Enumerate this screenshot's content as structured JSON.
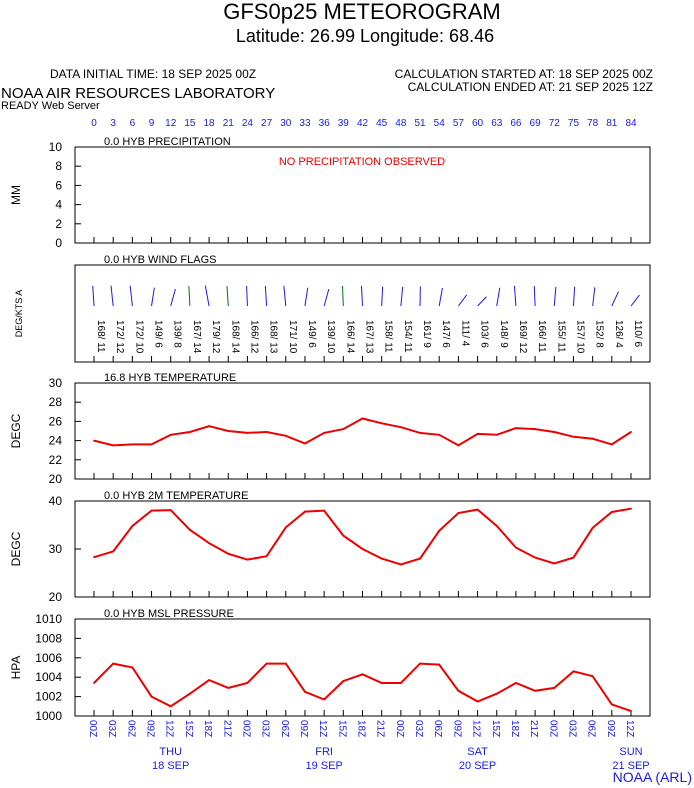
{
  "header": {
    "title": "GFS0p25 METEOROGRAM",
    "subtitle": "Latitude: 26.99 Longitude:  68.46",
    "data_initial_time": "DATA INITIAL TIME: 18 SEP 2025 00Z",
    "calc_started": "CALCULATION STARTED AT: 18 SEP 2025 00Z",
    "calc_ended": "CALCULATION ENDED AT: 21 SEP 2025 12Z",
    "org": "NOAA AIR RESOURCES LABORATORY",
    "server": "READY Web Server",
    "footer_brand": "NOAA (ARL)"
  },
  "colors": {
    "series": "#ee0000",
    "axis_hours": "#1a1ae6",
    "black": "#000000",
    "wind_green": "#007700",
    "wind_blue": "#1a1ae6"
  },
  "forecast_hours": [
    "0",
    "3",
    "6",
    "9",
    "12",
    "15",
    "18",
    "21",
    "24",
    "27",
    "30",
    "33",
    "36",
    "39",
    "42",
    "45",
    "48",
    "51",
    "54",
    "57",
    "60",
    "63",
    "66",
    "69",
    "72",
    "75",
    "78",
    "81",
    "84"
  ],
  "time_labels": [
    "00Z",
    "03Z",
    "06Z",
    "09Z",
    "12Z",
    "15Z",
    "18Z",
    "21Z",
    "00Z",
    "03Z",
    "06Z",
    "09Z",
    "12Z",
    "15Z",
    "18Z",
    "21Z",
    "00Z",
    "03Z",
    "06Z",
    "09Z",
    "12Z",
    "15Z",
    "18Z",
    "21Z",
    "00Z",
    "03Z",
    "06Z",
    "09Z",
    "12Z"
  ],
  "days": [
    {
      "day": "THU",
      "date": "18 SEP",
      "at_index": 4
    },
    {
      "day": "FRI",
      "date": "19 SEP",
      "at_index": 12
    },
    {
      "day": "SAT",
      "date": "20 SEP",
      "at_index": 20
    },
    {
      "day": "SUN",
      "date": "21 SEP",
      "at_index": 28
    }
  ],
  "chart_data": [
    {
      "type": "bar",
      "title": "0.0 HYB PRECIPITATION",
      "ylabel": "MM",
      "ylim": [
        0,
        10
      ],
      "yticks": [
        "10",
        "8",
        "6",
        "4",
        "2",
        "0"
      ],
      "note": "NO PRECIPITATION OBSERVED",
      "values": []
    },
    {
      "type": "wind",
      "title": "0.0 HYB WIND FLAGS",
      "ylabel": "DEG/KTS  A",
      "labels": [
        "168/ 11",
        "172/ 12",
        "172/ 10",
        "149/ 6",
        "139/ 8",
        "167/ 14",
        "179/ 12",
        "168/ 14",
        "166/ 12",
        "168/ 13",
        "171/ 10",
        "149/ 6",
        "139/ 10",
        "166/ 14",
        "167/ 13",
        "158/ 11",
        "154/ 11",
        "161/ 9",
        "147/ 6",
        "111/ 4",
        "103/ 6",
        "148/ 9",
        "169/ 12",
        "166/ 11",
        "155/ 11",
        "157/ 10",
        "152/ 8",
        "126/ 4",
        "110/ 6"
      ],
      "directions": [
        168,
        172,
        172,
        149,
        139,
        167,
        179,
        168,
        166,
        168,
        171,
        149,
        139,
        166,
        167,
        158,
        154,
        161,
        147,
        111,
        103,
        148,
        169,
        166,
        155,
        157,
        152,
        126,
        110
      ],
      "speeds": [
        11,
        12,
        10,
        6,
        8,
        14,
        12,
        14,
        12,
        13,
        10,
        6,
        10,
        14,
        13,
        11,
        11,
        9,
        6,
        4,
        6,
        9,
        12,
        11,
        11,
        10,
        8,
        4,
        6
      ]
    },
    {
      "type": "line",
      "title": "16.8 HYB TEMPERATURE",
      "ylabel": "DEGC",
      "ylim": [
        20,
        30
      ],
      "yticks": [
        "30",
        "28",
        "26",
        "24",
        "22",
        "20"
      ],
      "values": [
        24.0,
        23.5,
        23.6,
        23.6,
        24.6,
        24.9,
        25.5,
        25.0,
        24.8,
        24.9,
        24.5,
        23.7,
        24.8,
        25.2,
        26.3,
        25.8,
        25.4,
        24.8,
        24.6,
        23.5,
        24.7,
        24.6,
        25.3,
        25.2,
        24.9,
        24.4,
        24.2,
        23.6,
        24.9
      ]
    },
    {
      "type": "line",
      "title": "0.0 HYB 2M TEMPERATURE",
      "ylabel": "DEGC",
      "ylim": [
        20,
        40
      ],
      "yticks": [
        "40",
        "30",
        "20"
      ],
      "values": [
        28.3,
        29.5,
        34.8,
        38.0,
        38.1,
        34.0,
        31.2,
        29.0,
        27.8,
        28.5,
        34.5,
        37.8,
        38.0,
        32.8,
        30.0,
        28.0,
        26.8,
        28.0,
        33.8,
        37.5,
        38.2,
        34.8,
        30.3,
        28.2,
        27.0,
        28.2,
        34.4,
        37.7,
        38.4
      ]
    },
    {
      "type": "line",
      "title": "0.0 HYB MSL PRESSURE",
      "ylabel": "HPA",
      "ylim": [
        1000,
        1010
      ],
      "yticks": [
        "1010",
        "1008",
        "1006",
        "1004",
        "1002",
        "1000"
      ],
      "values": [
        1003.4,
        1005.4,
        1005.0,
        1002.0,
        1001.0,
        1002.3,
        1003.7,
        1002.9,
        1003.4,
        1005.4,
        1005.4,
        1002.5,
        1001.7,
        1003.6,
        1004.3,
        1003.4,
        1003.4,
        1005.4,
        1005.3,
        1002.6,
        1001.5,
        1002.3,
        1003.4,
        1002.6,
        1002.9,
        1004.6,
        1004.1,
        1001.2,
        1000.5
      ]
    }
  ]
}
